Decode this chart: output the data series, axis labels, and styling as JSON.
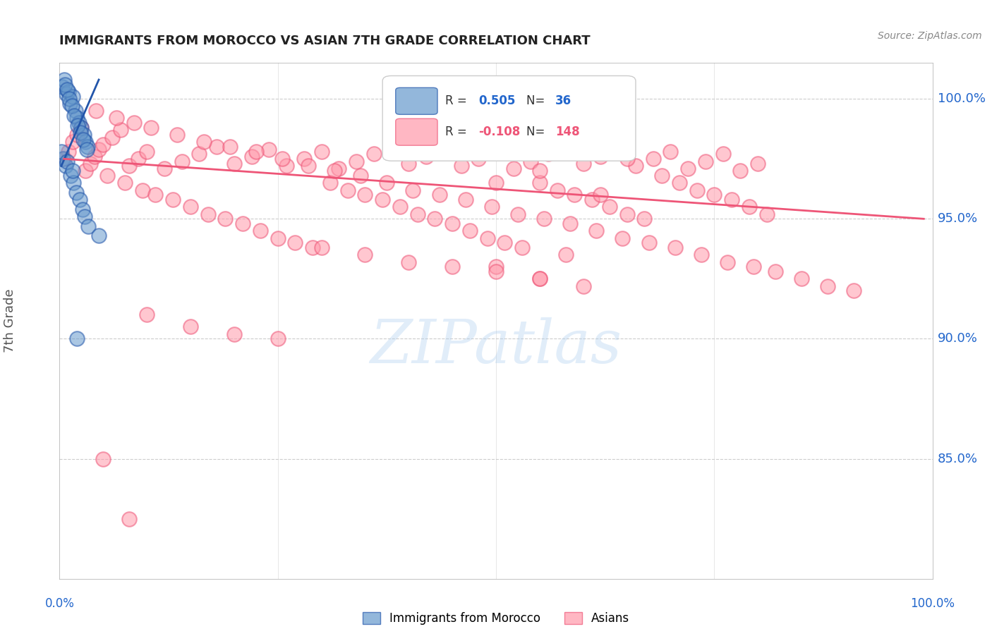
{
  "title": "IMMIGRANTS FROM MOROCCO VS ASIAN 7TH GRADE CORRELATION CHART",
  "source": "Source: ZipAtlas.com",
  "ylabel": "7th Grade",
  "right_yticks": [
    85.0,
    90.0,
    95.0,
    100.0
  ],
  "xlim": [
    0.0,
    100.0
  ],
  "ylim": [
    80.0,
    101.5
  ],
  "blue_color": "#6699cc",
  "pink_color": "#ff99aa",
  "blue_line_color": "#2255aa",
  "pink_line_color": "#ee5577",
  "blue_R": 0.505,
  "blue_N": 36,
  "pink_R": -0.108,
  "pink_N": 148,
  "legend_label_blue": "Immigrants from Morocco",
  "legend_label_pink": "Asians",
  "watermark": "ZIPatlas",
  "title_fontsize": 13,
  "axis_label_color": "#2266cc",
  "background_color": "#ffffff",
  "blue_scatter_x": [
    0.3,
    0.5,
    0.8,
    1.0,
    1.2,
    1.5,
    1.8,
    2.0,
    2.2,
    2.5,
    2.8,
    3.0,
    3.2,
    0.6,
    0.9,
    1.1,
    1.4,
    1.7,
    2.1,
    2.4,
    2.7,
    3.1,
    0.4,
    0.7,
    1.3,
    1.6,
    1.9,
    2.3,
    2.6,
    2.9,
    3.3,
    4.5,
    0.2,
    0.9,
    1.5,
    2.0
  ],
  "blue_scatter_y": [
    100.5,
    100.8,
    100.2,
    100.3,
    99.8,
    100.1,
    99.5,
    99.2,
    99.0,
    98.8,
    98.5,
    98.2,
    98.0,
    100.6,
    100.4,
    100.0,
    99.7,
    99.3,
    98.9,
    98.6,
    98.3,
    97.9,
    97.5,
    97.2,
    96.8,
    96.5,
    96.1,
    95.8,
    95.4,
    95.1,
    94.7,
    94.3,
    97.8,
    97.4,
    97.0,
    90.0
  ],
  "pink_scatter_x": [
    0.5,
    1.0,
    1.5,
    2.0,
    2.5,
    3.0,
    3.5,
    4.0,
    4.5,
    5.0,
    6.0,
    7.0,
    8.0,
    9.0,
    10.0,
    12.0,
    14.0,
    16.0,
    18.0,
    20.0,
    22.0,
    24.0,
    26.0,
    28.0,
    30.0,
    32.0,
    34.0,
    36.0,
    38.0,
    40.0,
    42.0,
    44.0,
    46.0,
    48.0,
    50.0,
    52.0,
    54.0,
    56.0,
    58.0,
    60.0,
    62.0,
    64.0,
    66.0,
    68.0,
    70.0,
    72.0,
    74.0,
    76.0,
    78.0,
    80.0,
    5.5,
    7.5,
    9.5,
    11.0,
    13.0,
    15.0,
    17.0,
    19.0,
    21.0,
    23.0,
    25.0,
    27.0,
    29.0,
    31.0,
    33.0,
    35.0,
    37.0,
    39.0,
    41.0,
    43.0,
    45.0,
    47.0,
    49.0,
    51.0,
    53.0,
    55.0,
    57.0,
    59.0,
    61.0,
    63.0,
    65.0,
    67.0,
    69.0,
    71.0,
    73.0,
    75.0,
    77.0,
    79.0,
    81.0,
    4.2,
    6.5,
    8.5,
    10.5,
    13.5,
    16.5,
    19.5,
    22.5,
    25.5,
    28.5,
    31.5,
    34.5,
    37.5,
    40.5,
    43.5,
    46.5,
    49.5,
    52.5,
    55.5,
    58.5,
    61.5,
    64.5,
    67.5,
    70.5,
    73.5,
    76.5,
    79.5,
    82.0,
    85.0,
    88.0,
    91.0,
    50.0,
    55.0,
    62.0,
    65.0,
    50.0,
    55.0,
    58.0,
    30.0,
    35.0,
    40.0,
    45.0,
    50.0,
    55.0,
    60.0,
    10.0,
    15.0,
    20.0,
    25.0,
    5.0,
    8.0
  ],
  "pink_scatter_y": [
    97.5,
    97.8,
    98.2,
    98.5,
    98.8,
    97.0,
    97.3,
    97.6,
    97.9,
    98.1,
    98.4,
    98.7,
    97.2,
    97.5,
    97.8,
    97.1,
    97.4,
    97.7,
    98.0,
    97.3,
    97.6,
    97.9,
    97.2,
    97.5,
    97.8,
    97.1,
    97.4,
    97.7,
    98.0,
    97.3,
    97.6,
    97.9,
    97.2,
    97.5,
    97.8,
    97.1,
    97.4,
    97.7,
    98.0,
    97.3,
    97.6,
    97.9,
    97.2,
    97.5,
    97.8,
    97.1,
    97.4,
    97.7,
    97.0,
    97.3,
    96.8,
    96.5,
    96.2,
    96.0,
    95.8,
    95.5,
    95.2,
    95.0,
    94.8,
    94.5,
    94.2,
    94.0,
    93.8,
    96.5,
    96.2,
    96.0,
    95.8,
    95.5,
    95.2,
    95.0,
    94.8,
    94.5,
    94.2,
    94.0,
    93.8,
    96.5,
    96.2,
    96.0,
    95.8,
    95.5,
    95.2,
    95.0,
    96.8,
    96.5,
    96.2,
    96.0,
    95.8,
    95.5,
    95.2,
    99.5,
    99.2,
    99.0,
    98.8,
    98.5,
    98.2,
    98.0,
    97.8,
    97.5,
    97.2,
    97.0,
    96.8,
    96.5,
    96.2,
    96.0,
    95.8,
    95.5,
    95.2,
    95.0,
    94.8,
    94.5,
    94.2,
    94.0,
    93.8,
    93.5,
    93.2,
    93.0,
    92.8,
    92.5,
    92.2,
    92.0,
    96.5,
    97.0,
    96.0,
    97.5,
    93.0,
    92.5,
    93.5,
    93.8,
    93.5,
    93.2,
    93.0,
    92.8,
    92.5,
    92.2,
    91.0,
    90.5,
    90.2,
    90.0,
    85.0,
    82.5
  ],
  "blue_trend_x0": 0.2,
  "blue_trend_x1": 4.5,
  "blue_trend_y0": 97.2,
  "blue_trend_y1": 100.8,
  "pink_trend_x0": 0.5,
  "pink_trend_x1": 99.0,
  "pink_trend_y0": 97.5,
  "pink_trend_y1": 95.0
}
